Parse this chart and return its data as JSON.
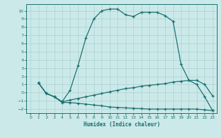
{
  "xlabel": "Humidex (Indice chaleur)",
  "bg_color": "#cce9e9",
  "grid_color": "#aad0d0",
  "line_color": "#1a7070",
  "xlim": [
    -0.5,
    23.5
  ],
  "ylim": [
    -2.5,
    10.8
  ],
  "xticks": [
    0,
    1,
    2,
    3,
    4,
    5,
    6,
    7,
    8,
    9,
    10,
    11,
    12,
    13,
    14,
    15,
    16,
    17,
    18,
    19,
    20,
    21,
    22,
    23
  ],
  "yticks": [
    -2,
    -1,
    0,
    1,
    2,
    3,
    4,
    5,
    6,
    7,
    8,
    9,
    10
  ],
  "curve1_x": [
    1,
    2,
    3,
    4,
    5,
    6,
    7,
    8,
    9,
    10,
    11,
    12,
    13,
    14,
    15,
    16,
    17,
    18,
    19,
    20,
    21,
    22,
    23
  ],
  "curve1_y": [
    1.2,
    -0.1,
    -0.5,
    -1.2,
    -1.2,
    -1.3,
    -1.4,
    -1.5,
    -1.6,
    -1.75,
    -1.8,
    -1.85,
    -1.9,
    -1.95,
    -2.0,
    -2.0,
    -2.0,
    -2.0,
    -2.0,
    -2.0,
    -2.0,
    -2.1,
    -2.2
  ],
  "curve2_x": [
    1,
    2,
    3,
    4,
    5,
    6,
    7,
    8,
    9,
    10,
    11,
    12,
    13,
    14,
    15,
    16,
    17,
    18,
    19,
    20,
    21,
    22,
    23
  ],
  "curve2_y": [
    1.2,
    -0.1,
    -0.5,
    -1.1,
    -0.9,
    -0.7,
    -0.5,
    -0.3,
    -0.1,
    0.1,
    0.3,
    0.5,
    0.6,
    0.8,
    0.9,
    1.0,
    1.1,
    1.3,
    1.4,
    1.5,
    1.5,
    1.0,
    -0.4
  ],
  "curve3_x": [
    1,
    2,
    3,
    4,
    5,
    6,
    7,
    8,
    9,
    10,
    11,
    12,
    13,
    14,
    15,
    16,
    17,
    18,
    19,
    20,
    21,
    22,
    23
  ],
  "curve3_y": [
    1.2,
    -0.1,
    -0.5,
    -1.1,
    0.3,
    3.3,
    6.7,
    9.0,
    10.0,
    10.2,
    10.2,
    9.5,
    9.3,
    9.8,
    9.8,
    9.8,
    9.4,
    8.7,
    3.5,
    1.5,
    1.0,
    -0.5,
    -2.2
  ]
}
